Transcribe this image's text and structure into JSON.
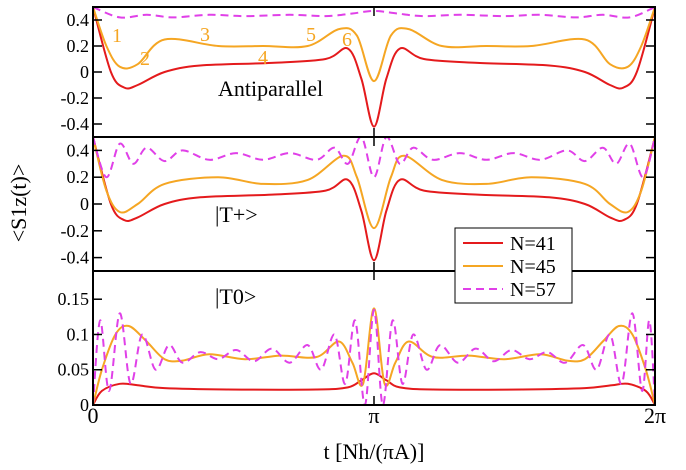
{
  "chart_data": {
    "type": "line",
    "xlabel": "t [Nh/(πA)]",
    "ylabel": "<S1z(t)>",
    "xlim": [
      0,
      6.2832
    ],
    "x_ticks": [
      {
        "value": 0,
        "label": "0"
      },
      {
        "value": 3.1416,
        "label": "π"
      },
      {
        "value": 6.2832,
        "label": "2π"
      }
    ],
    "grid": false,
    "legend_placement": "inside middle panel, lower right",
    "series_styles": [
      {
        "name": "N=41",
        "color": "#e41a1c",
        "dash": "solid"
      },
      {
        "name": "N=45",
        "color": "#f5a623",
        "dash": "solid"
      },
      {
        "name": "N=57",
        "color": "#e040e8",
        "dash": "dashed"
      }
    ],
    "panels": [
      {
        "label": "Antiparallel",
        "ylim": [
          -0.5,
          0.5
        ],
        "y_ticks": [
          "-0.4",
          "-0.2",
          "0",
          "0.2",
          "0.4"
        ],
        "annotations": [
          "1",
          "2",
          "3",
          "4",
          "5",
          "6"
        ],
        "series": [
          {
            "name": "N=41",
            "x": [
              0,
              0.2,
              0.35,
              0.5,
              0.8,
              1.2,
              2.0,
              2.6,
              2.85,
              3.0,
              3.1416,
              3.28,
              3.43,
              3.7,
              4.3,
              5.1,
              5.5,
              5.78,
              5.93,
              6.08,
              6.2832
            ],
            "y": [
              0.5,
              0.0,
              -0.12,
              -0.1,
              0.0,
              0.05,
              0.07,
              0.1,
              0.18,
              -0.05,
              -0.42,
              -0.05,
              0.18,
              0.1,
              0.07,
              0.05,
              0.0,
              -0.1,
              -0.12,
              0.0,
              0.5
            ]
          },
          {
            "name": "N=45",
            "x": [
              0,
              0.15,
              0.3,
              0.5,
              0.8,
              1.4,
              1.9,
              2.4,
              2.75,
              2.95,
              3.1416,
              3.33,
              3.53,
              3.9,
              4.4,
              4.9,
              5.5,
              5.78,
              5.98,
              6.13,
              6.2832
            ],
            "y": [
              0.5,
              0.2,
              0.04,
              0.06,
              0.25,
              0.2,
              0.2,
              0.2,
              0.33,
              0.28,
              -0.07,
              0.28,
              0.33,
              0.2,
              0.2,
              0.2,
              0.25,
              0.06,
              0.04,
              0.2,
              0.5
            ]
          },
          {
            "name": "N=57",
            "x": [
              0,
              0.3,
              0.6,
              0.9,
              1.3,
              1.7,
              2.2,
              2.6,
              2.9,
              3.1416,
              3.4,
              3.7,
              4.1,
              4.6,
              5.0,
              5.4,
              5.7,
              6.0,
              6.2832
            ],
            "y": [
              0.5,
              0.42,
              0.44,
              0.42,
              0.44,
              0.43,
              0.44,
              0.43,
              0.45,
              0.47,
              0.45,
              0.43,
              0.44,
              0.43,
              0.44,
              0.42,
              0.44,
              0.42,
              0.5
            ]
          }
        ]
      },
      {
        "label": "|T+>",
        "ylim": [
          -0.5,
          0.5
        ],
        "y_ticks": [
          "-0.4",
          "-0.2",
          "0",
          "0.2",
          "0.4"
        ],
        "series": [
          {
            "name": "N=41",
            "x": [
              0,
              0.2,
              0.35,
              0.5,
              0.8,
              1.2,
              2.0,
              2.6,
              2.85,
              3.0,
              3.1416,
              3.28,
              3.43,
              3.7,
              4.3,
              5.1,
              5.5,
              5.78,
              5.93,
              6.08,
              6.2832
            ],
            "y": [
              0.5,
              0.0,
              -0.12,
              -0.1,
              0.0,
              0.05,
              0.07,
              0.1,
              0.18,
              -0.05,
              -0.42,
              -0.05,
              0.18,
              0.1,
              0.07,
              0.05,
              0.0,
              -0.1,
              -0.12,
              0.0,
              0.5
            ]
          },
          {
            "name": "N=45",
            "x": [
              0,
              0.15,
              0.3,
              0.5,
              0.8,
              1.4,
              1.9,
              2.4,
              2.8,
              2.95,
              3.1416,
              3.33,
              3.48,
              3.9,
              4.4,
              4.9,
              5.5,
              5.78,
              5.98,
              6.13,
              6.2832
            ],
            "y": [
              0.5,
              0.1,
              -0.06,
              0.0,
              0.15,
              0.2,
              0.15,
              0.18,
              0.36,
              0.2,
              -0.18,
              0.2,
              0.36,
              0.18,
              0.15,
              0.2,
              0.15,
              0.0,
              -0.06,
              0.1,
              0.5
            ]
          },
          {
            "name": "N=57",
            "x": [
              0,
              0.15,
              0.3,
              0.45,
              0.6,
              0.8,
              1.0,
              1.3,
              1.6,
              1.9,
              2.2,
              2.5,
              2.7,
              2.85,
              3.0,
              3.1416,
              3.28,
              3.43,
              3.58,
              3.8,
              4.1,
              4.4,
              4.7,
              5.0,
              5.3,
              5.5,
              5.7,
              5.85,
              6.0,
              6.15,
              6.2832
            ],
            "y": [
              0.5,
              0.2,
              0.45,
              0.3,
              0.42,
              0.32,
              0.4,
              0.33,
              0.38,
              0.33,
              0.38,
              0.33,
              0.42,
              0.3,
              0.5,
              0.2,
              0.5,
              0.3,
              0.42,
              0.33,
              0.38,
              0.33,
              0.38,
              0.33,
              0.4,
              0.32,
              0.42,
              0.3,
              0.45,
              0.2,
              0.5
            ]
          }
        ]
      },
      {
        "label": "|T0>",
        "ylim": [
          0,
          0.19
        ],
        "y_ticks": [
          "0",
          "0.05",
          "0.1",
          "0.15"
        ],
        "series": [
          {
            "name": "N=41",
            "x": [
              0,
              0.1,
              0.3,
              0.5,
              0.8,
              1.5,
              2.5,
              2.85,
              3.0,
              3.1416,
              3.28,
              3.43,
              3.8,
              4.8,
              5.5,
              5.8,
              5.98,
              6.18,
              6.2832
            ],
            "y": [
              0,
              0.02,
              0.03,
              0.028,
              0.024,
              0.022,
              0.022,
              0.025,
              0.035,
              0.045,
              0.035,
              0.025,
              0.022,
              0.022,
              0.024,
              0.028,
              0.03,
              0.02,
              0
            ]
          },
          {
            "name": "N=45",
            "x": [
              0,
              0.1,
              0.25,
              0.4,
              0.6,
              0.8,
              1.0,
              1.3,
              1.7,
              2.1,
              2.5,
              2.75,
              2.9,
              3.02,
              3.1416,
              3.26,
              3.38,
              3.53,
              3.8,
              4.2,
              4.6,
              5.0,
              5.3,
              5.5,
              5.7,
              5.88,
              6.03,
              6.18,
              6.2832
            ],
            "y": [
              0,
              0.05,
              0.1,
              0.112,
              0.09,
              0.065,
              0.063,
              0.072,
              0.065,
              0.07,
              0.068,
              0.09,
              0.06,
              0.03,
              0.137,
              0.03,
              0.06,
              0.09,
              0.068,
              0.07,
              0.065,
              0.072,
              0.063,
              0.065,
              0.09,
              0.112,
              0.1,
              0.05,
              0
            ]
          },
          {
            "name": "N=57",
            "x": [
              0,
              0.08,
              0.18,
              0.3,
              0.42,
              0.55,
              0.7,
              0.85,
              1.0,
              1.2,
              1.4,
              1.6,
              1.8,
              2.0,
              2.2,
              2.4,
              2.55,
              2.7,
              2.82,
              2.93,
              3.04,
              3.1416,
              3.24,
              3.35,
              3.46,
              3.58,
              3.73,
              3.88,
              4.08,
              4.28,
              4.48,
              4.68,
              4.88,
              5.08,
              5.28,
              5.48,
              5.63,
              5.78,
              5.91,
              6.03,
              6.14,
              6.22,
              6.2832
            ],
            "y": [
              0,
              0.12,
              0.02,
              0.13,
              0.03,
              0.1,
              0.05,
              0.085,
              0.06,
              0.075,
              0.065,
              0.078,
              0.062,
              0.08,
              0.06,
              0.085,
              0.05,
              0.1,
              0.03,
              0.12,
              0.0,
              0.135,
              0.0,
              0.12,
              0.03,
              0.1,
              0.05,
              0.085,
              0.06,
              0.08,
              0.062,
              0.078,
              0.065,
              0.075,
              0.06,
              0.085,
              0.05,
              0.1,
              0.03,
              0.13,
              0.02,
              0.12,
              0
            ]
          }
        ]
      }
    ],
    "legend": [
      "N=41",
      "N=45",
      "N=57"
    ]
  }
}
